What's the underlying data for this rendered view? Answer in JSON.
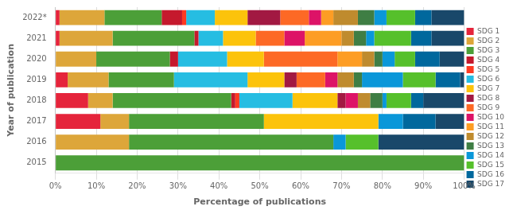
{
  "chart_data": {
    "type": "bar",
    "orientation": "horizontal",
    "stacked": true,
    "x_label": "Percentage of publications",
    "y_label": "Year of publication",
    "categories": [
      "2015",
      "2016",
      "2017",
      "2018",
      "2019",
      "2020",
      "2021",
      "2022*"
    ],
    "series": [
      {
        "name": "SDG 1",
        "color": "#e5243b",
        "values": [
          0,
          0,
          11,
          8,
          3,
          0,
          1,
          1
        ]
      },
      {
        "name": "SDG 2",
        "color": "#dda63a",
        "values": [
          0,
          18,
          7,
          6,
          10,
          10,
          13,
          11
        ]
      },
      {
        "name": "SDG 3",
        "color": "#4c9f38",
        "values": [
          100,
          50,
          33,
          29,
          16,
          18,
          20,
          14
        ]
      },
      {
        "name": "SDG 4",
        "color": "#c5192d",
        "values": [
          0,
          0,
          0,
          1,
          0,
          2,
          1,
          5
        ]
      },
      {
        "name": "SDG 5",
        "color": "#ff3a21",
        "values": [
          0,
          0,
          0,
          1,
          0,
          0,
          0,
          1
        ]
      },
      {
        "name": "SDG 6",
        "color": "#26bde2",
        "values": [
          0,
          0,
          0,
          13,
          18,
          12,
          6,
          7
        ]
      },
      {
        "name": "SDG 7",
        "color": "#fcc30b",
        "values": [
          0,
          0,
          28,
          11,
          9,
          9,
          8,
          8
        ]
      },
      {
        "name": "SDG 8",
        "color": "#a21942",
        "values": [
          0,
          0,
          0,
          2,
          3,
          0,
          0,
          8
        ]
      },
      {
        "name": "SDG 9",
        "color": "#fd6925",
        "values": [
          0,
          0,
          0,
          0,
          7,
          18,
          7,
          7
        ]
      },
      {
        "name": "SDG 10",
        "color": "#dd1367",
        "values": [
          0,
          0,
          0,
          3,
          3,
          0,
          5,
          3
        ]
      },
      {
        "name": "SDG 11",
        "color": "#fd9d24",
        "values": [
          0,
          0,
          0,
          0,
          0,
          6,
          9,
          3
        ]
      },
      {
        "name": "SDG 12",
        "color": "#bf8b2e",
        "values": [
          0,
          0,
          0,
          3,
          4,
          3,
          3,
          6
        ]
      },
      {
        "name": "SDG 13",
        "color": "#3f7e44",
        "values": [
          0,
          0,
          0,
          3,
          2,
          2,
          3,
          4
        ]
      },
      {
        "name": "SDG 14",
        "color": "#0a97d9",
        "values": [
          0,
          3,
          6,
          1,
          10,
          3,
          2,
          3
        ]
      },
      {
        "name": "SDG 15",
        "color": "#56c02b",
        "values": [
          0,
          8,
          0,
          6,
          8,
          5,
          9,
          7
        ]
      },
      {
        "name": "SDG 16",
        "color": "#00689d",
        "values": [
          0,
          0,
          8,
          3,
          6,
          6,
          5,
          4
        ]
      },
      {
        "name": "SDG 17",
        "color": "#19486a",
        "values": [
          0,
          21,
          7,
          10,
          1,
          6,
          8,
          8
        ]
      }
    ],
    "xlim": [
      0,
      100
    ],
    "xticks": [
      {
        "value": 0,
        "label": "0%"
      },
      {
        "value": 10,
        "label": "10%"
      },
      {
        "value": 20,
        "label": "20%"
      },
      {
        "value": 30,
        "label": "30%"
      },
      {
        "value": 40,
        "label": "40%"
      },
      {
        "value": 50,
        "label": "50%"
      },
      {
        "value": 60,
        "label": "60%"
      },
      {
        "value": 70,
        "label": "70%"
      },
      {
        "value": 80,
        "label": "80%"
      },
      {
        "value": 90,
        "label": "90%"
      },
      {
        "value": 100,
        "label": "100%"
      }
    ],
    "grid": true,
    "legend": "right"
  }
}
